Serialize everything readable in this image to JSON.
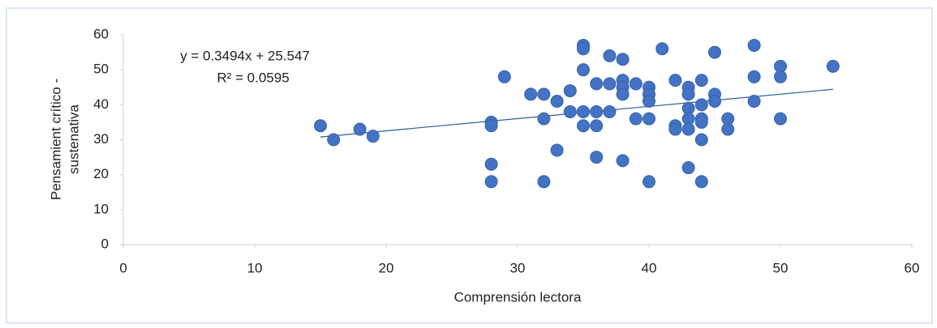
{
  "chart_data": {
    "type": "scatter",
    "xlabel": "Comprensión lectora",
    "ylabel": [
      "Pensamient crítico -",
      "sustenativa"
    ],
    "x": [
      15,
      16,
      18,
      19,
      28,
      28,
      28,
      28,
      29,
      31,
      32,
      32,
      32,
      33,
      33,
      34,
      34,
      35,
      35,
      35,
      35,
      35,
      36,
      36,
      36,
      36,
      37,
      37,
      37,
      38,
      38,
      38,
      38,
      38,
      39,
      39,
      40,
      40,
      40,
      40,
      40,
      41,
      42,
      42,
      42,
      43,
      43,
      43,
      43,
      43,
      43,
      44,
      44,
      44,
      44,
      44,
      44,
      45,
      45,
      45,
      46,
      46,
      48,
      48,
      48,
      50,
      50,
      50,
      54
    ],
    "values": [
      34,
      30,
      33,
      31,
      35,
      34,
      23,
      18,
      48,
      43,
      43,
      36,
      18,
      41,
      27,
      44,
      38,
      57,
      56,
      50,
      38,
      34,
      46,
      38,
      34,
      25,
      54,
      46,
      38,
      53,
      47,
      45,
      43,
      24,
      46,
      36,
      45,
      43,
      41,
      36,
      18,
      56,
      47,
      34,
      33,
      45,
      43,
      39,
      36,
      33,
      22,
      47,
      40,
      36,
      35,
      30,
      18,
      55,
      43,
      41,
      36,
      33,
      57,
      48,
      41,
      51,
      48,
      36,
      51
    ],
    "color": "#4472c4",
    "xlim": [
      0,
      60
    ],
    "xticks": [
      0,
      10,
      20,
      30,
      40,
      50,
      60
    ],
    "ylim": [
      0,
      60
    ],
    "yticks": [
      0,
      10,
      20,
      30,
      40,
      50,
      60
    ],
    "grid": false,
    "trendline": {
      "equation": "y = 0.3494x + 25.547",
      "r2": "R² = 0.0595",
      "slope": 0.3494,
      "intercept": 25.547,
      "color": "#2e5d9a"
    }
  }
}
